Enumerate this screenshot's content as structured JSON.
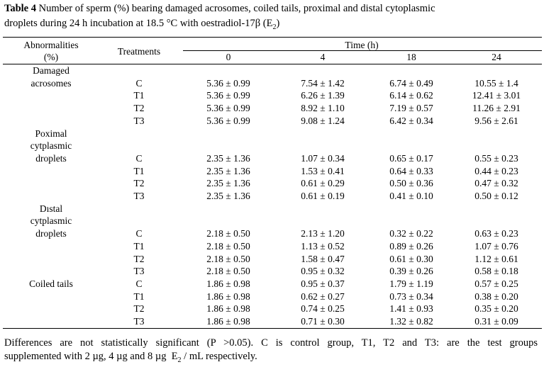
{
  "caption": {
    "label": "Table 4",
    "lines": [
      "Number of sperm (%) bearing damaged acrosomes, coiled tails, proximal and distal cytoplasmic",
      "droplets during 24 h incubation at 18.5 °C with oestradiol-17β (E"
    ],
    "subscript": "2",
    "close": ")"
  },
  "header": {
    "abnormalities": [
      "Abnormalities",
      "(%)"
    ],
    "treatments": "Treatments",
    "time": "Time (h)",
    "times": [
      "0",
      "4",
      "18",
      "24"
    ]
  },
  "groups": [
    {
      "label": [
        "Damaged",
        "acrosomes"
      ],
      "rows": [
        {
          "treatment": "C",
          "values": [
            "5.36 ± 0.99",
            "7.54 ± 1.42",
            "6.74 ± 0.49",
            "10.55 ± 1.4"
          ]
        },
        {
          "treatment": "T1",
          "values": [
            "5.36 ± 0.99",
            "6.26 ± 1.39",
            "6.14 ± 0.62",
            "12.41 ± 3.01"
          ]
        },
        {
          "treatment": "T2",
          "values": [
            "5.36 ± 0.99",
            "8.92 ± 1.10",
            "7.19 ± 0.57",
            "11.26 ± 2.91"
          ]
        },
        {
          "treatment": "T3",
          "values": [
            "5.36 ± 0.99",
            "9.08 ± 1.24",
            "6.42 ± 0.34",
            "9.56 ± 2.61"
          ]
        }
      ]
    },
    {
      "label": [
        "Poximal",
        "cytplasmic",
        "droplets"
      ],
      "rows": [
        {
          "treatment": "C",
          "values": [
            "2.35 ± 1.36",
            "1.07 ± 0.34",
            "0.65 ± 0.17",
            "0.55 ± 0.23"
          ]
        },
        {
          "treatment": "T1",
          "values": [
            "2.35 ± 1.36",
            "1.53 ± 0.41",
            "0.64 ± 0.33",
            "0.44 ± 0.23"
          ]
        },
        {
          "treatment": "T2",
          "values": [
            "2.35 ± 1.36",
            "0.61 ± 0.29",
            "0.50 ± 0.36",
            "0.47 ± 0.32"
          ]
        },
        {
          "treatment": "T3",
          "values": [
            "2.35 ± 1.36",
            "0.61 ± 0.19",
            "0.41 ± 0.10",
            "0.50 ± 0.12"
          ]
        }
      ]
    },
    {
      "label": [
        "Dıstal",
        "cytplasmic",
        "droplets"
      ],
      "rows": [
        {
          "treatment": "C",
          "values": [
            "2.18 ± 0.50",
            "2.13 ± 1.20",
            "0.32 ± 0.22",
            "0.63 ± 0.23"
          ]
        },
        {
          "treatment": "T1",
          "values": [
            "2.18 ± 0.50",
            "1.13 ± 0.52",
            "0.89 ± 0.26",
            "1.07 ± 0.76"
          ]
        },
        {
          "treatment": "T2",
          "values": [
            "2.18 ± 0.50",
            "1.58 ± 0.47",
            "0.61 ± 0.30",
            "1.12 ± 0.61"
          ]
        },
        {
          "treatment": "T3",
          "values": [
            "2.18 ± 0.50",
            "0.95 ± 0.32",
            "0.39 ± 0.26",
            "0.58 ± 0.18"
          ]
        }
      ]
    },
    {
      "label": [
        "Coiled tails"
      ],
      "rows": [
        {
          "treatment": "C",
          "values": [
            "1.86 ± 0.98",
            "0.95 ± 0.37",
            "1.79 ± 1.19",
            "0.57 ± 0.25"
          ]
        },
        {
          "treatment": "T1",
          "values": [
            "1.86 ± 0.98",
            "0.62 ± 0.27",
            "0.73 ± 0.34",
            "0.38 ± 0.20"
          ]
        },
        {
          "treatment": "T2",
          "values": [
            "1.86 ± 0.98",
            "0.74 ± 0.25",
            "1.41 ± 0.93",
            "0.35 ± 0.20"
          ]
        },
        {
          "treatment": "T3",
          "values": [
            "1.86 ± 0.98",
            "0.71 ± 0.30",
            "1.32 ± 0.82",
            "0.31 ± 0.09"
          ]
        }
      ]
    }
  ],
  "footnote": {
    "lines": [
      "Differences are not statistically significant (P >0.05). C is control group, T1, T2 and T3: are the test groups",
      "supplemented with 2 µg, 4 µg and 8 µg  E"
    ],
    "subscript": "2",
    "close": " / mL respectively."
  }
}
